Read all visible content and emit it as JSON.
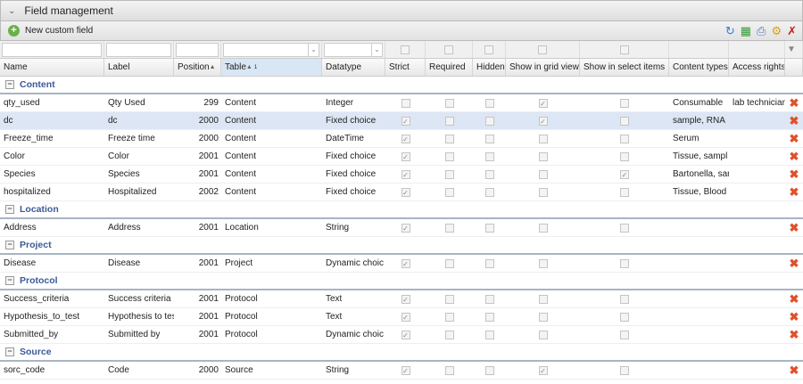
{
  "panel": {
    "title": "Field management",
    "collapse_icon": "chevron-down-icon"
  },
  "toolbar": {
    "new_label": "New custom field",
    "tools": [
      "refresh-icon",
      "export-excel-icon",
      "print-icon",
      "settings-icon",
      "clear-filter-icon"
    ]
  },
  "columns": [
    "Name",
    "Label",
    "Position",
    "Table",
    "Datatype",
    "Strict",
    "Required",
    "Hidden",
    "Show in grid view",
    "Show in select items",
    "Content types",
    "Access rights"
  ],
  "sort": {
    "position": "asc",
    "table": "asc",
    "table_order": "1"
  },
  "groups": [
    {
      "name": "Content",
      "rows": [
        {
          "name": "qty_used",
          "label": "Qty Used",
          "position": "299",
          "table": "Content",
          "datatype": "Integer",
          "strict": false,
          "required": false,
          "hidden": false,
          "grid": true,
          "select": false,
          "content_types": "Consumable",
          "access_rights": "lab technician,"
        },
        {
          "name": "dc",
          "label": "dc",
          "position": "2000",
          "table": "Content",
          "datatype": "Fixed choice",
          "strict": true,
          "required": false,
          "hidden": false,
          "grid": true,
          "select": false,
          "content_types": "sample, RNA",
          "access_rights": "",
          "selected": true
        },
        {
          "name": "Freeze_time",
          "label": "Freeze time",
          "position": "2000",
          "table": "Content",
          "datatype": "DateTime",
          "strict": true,
          "required": false,
          "hidden": false,
          "grid": false,
          "select": false,
          "content_types": "Serum",
          "access_rights": ""
        },
        {
          "name": "Color",
          "label": "Color",
          "position": "2001",
          "table": "Content",
          "datatype": "Fixed choice",
          "strict": true,
          "required": false,
          "hidden": false,
          "grid": false,
          "select": false,
          "content_types": "Tissue, sampl",
          "access_rights": ""
        },
        {
          "name": "Species",
          "label": "Species",
          "position": "2001",
          "table": "Content",
          "datatype": "Fixed choice",
          "strict": true,
          "required": false,
          "hidden": false,
          "grid": false,
          "select": true,
          "content_types": "Bartonella, sar",
          "access_rights": ""
        },
        {
          "name": "hospitalized",
          "label": "Hospitalized",
          "position": "2002",
          "table": "Content",
          "datatype": "Fixed choice",
          "strict": true,
          "required": false,
          "hidden": false,
          "grid": false,
          "select": false,
          "content_types": "Tissue, Blood",
          "access_rights": ""
        }
      ]
    },
    {
      "name": "Location",
      "rows": [
        {
          "name": "Address",
          "label": "Address",
          "position": "2001",
          "table": "Location",
          "datatype": "String",
          "strict": true,
          "required": false,
          "hidden": false,
          "grid": false,
          "select": false,
          "content_types": "",
          "access_rights": ""
        }
      ]
    },
    {
      "name": "Project",
      "rows": [
        {
          "name": "Disease",
          "label": "Disease",
          "position": "2001",
          "table": "Project",
          "datatype": "Dynamic choic",
          "strict": true,
          "required": false,
          "hidden": false,
          "grid": false,
          "select": false,
          "content_types": "",
          "access_rights": ""
        }
      ]
    },
    {
      "name": "Protocol",
      "rows": [
        {
          "name": "Success_criteria",
          "label": "Success criteria",
          "position": "2001",
          "table": "Protocol",
          "datatype": "Text",
          "strict": true,
          "required": false,
          "hidden": false,
          "grid": false,
          "select": false,
          "content_types": "",
          "access_rights": ""
        },
        {
          "name": "Hypothesis_to_test",
          "label": "Hypothesis to tes",
          "position": "2001",
          "table": "Protocol",
          "datatype": "Text",
          "strict": true,
          "required": false,
          "hidden": false,
          "grid": false,
          "select": false,
          "content_types": "",
          "access_rights": ""
        },
        {
          "name": "Submitted_by",
          "label": "Submitted by",
          "position": "2001",
          "table": "Protocol",
          "datatype": "Dynamic choic",
          "strict": true,
          "required": false,
          "hidden": false,
          "grid": false,
          "select": false,
          "content_types": "",
          "access_rights": ""
        }
      ]
    },
    {
      "name": "Source",
      "rows": [
        {
          "name": "sorc_code",
          "label": "Code",
          "position": "2000",
          "table": "Source",
          "datatype": "String",
          "strict": true,
          "required": false,
          "hidden": false,
          "grid": true,
          "select": false,
          "content_types": "",
          "access_rights": ""
        }
      ]
    }
  ],
  "colors": {
    "group_text": "#3b5998",
    "selected_row": "#dde6f4",
    "delete": "#e0502a"
  }
}
